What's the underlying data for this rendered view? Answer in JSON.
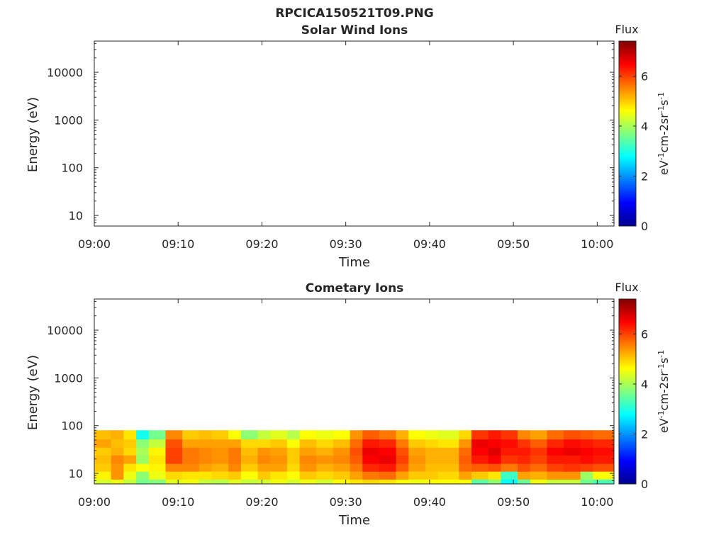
{
  "figure_title": "RPCICA150521T09.PNG",
  "chart_data": [
    {
      "type": "heatmap",
      "title": "Solar Wind Ions",
      "xlabel": "Time",
      "ylabel": "Energy (eV)",
      "y_scale": "log",
      "ylim": [
        6,
        45000
      ],
      "x_range": [
        "09:00",
        "10:02"
      ],
      "x_ticks": [
        "09:00",
        "09:10",
        "09:20",
        "09:30",
        "09:40",
        "09:50",
        "10:00"
      ],
      "y_ticks": [
        "10",
        "100",
        "1000",
        "10000"
      ],
      "colorbar": {
        "title": "Flux",
        "label": "eV-1cm-2sr-1s-1",
        "range": [
          0,
          7.4
        ],
        "ticks": [
          "0",
          "2",
          "4",
          "6"
        ],
        "colormap": "jet"
      },
      "grid": false,
      "data": []
    },
    {
      "type": "heatmap",
      "title": "Cometary Ions",
      "xlabel": "Time",
      "ylabel": "Energy (eV)",
      "y_scale": "log",
      "ylim": [
        6,
        45000
      ],
      "x_range": [
        "09:00",
        "10:02"
      ],
      "x_ticks": [
        "09:00",
        "09:10",
        "09:20",
        "09:30",
        "09:40",
        "09:50",
        "10:00"
      ],
      "y_ticks": [
        "10",
        "100",
        "1000",
        "10000"
      ],
      "colorbar": {
        "title": "Flux",
        "label": "eV-1cm-2sr-1s-1",
        "range": [
          0,
          7.4
        ],
        "ticks": [
          "0",
          "2",
          "4",
          "6"
        ],
        "colormap": "jet"
      },
      "grid": false,
      "energy_edges_eV": [
        6,
        7.5,
        11,
        16,
        24,
        35,
        52,
        80
      ],
      "time_minutes_start": [
        0,
        2,
        3.5,
        5,
        6.5,
        8.5,
        10.5,
        12.5,
        14,
        16,
        17.5,
        19.5,
        21,
        23,
        24.5,
        26.5,
        28.5,
        30.5,
        32,
        34,
        36,
        37.5,
        39.5,
        41,
        43.5,
        45,
        47,
        48.5,
        50.5,
        52,
        54,
        56,
        58,
        59.5
      ],
      "time_minutes_end": 62,
      "flux": [
        [
          4.3,
          4.7,
          5.0,
          5.1,
          5.0,
          5.3,
          5.1
        ],
        [
          4.5,
          5.4,
          5.4,
          5.5,
          5.2,
          5.1,
          5.2
        ],
        [
          4.2,
          4.5,
          4.8,
          5.3,
          4.9,
          5.0,
          4.8
        ],
        [
          3.6,
          3.8,
          4.6,
          3.9,
          4.0,
          3.8,
          2.9
        ],
        [
          3.7,
          4.5,
          4.7,
          4.8,
          4.7,
          4.2,
          3.6
        ],
        [
          4.4,
          4.9,
          5.5,
          6.0,
          6.0,
          5.9,
          5.5
        ],
        [
          4.5,
          4.8,
          5.5,
          5.6,
          5.6,
          5.3,
          5.0
        ],
        [
          4.2,
          4.8,
          5.3,
          5.5,
          5.5,
          5.3,
          5.1
        ],
        [
          4.1,
          4.9,
          5.2,
          5.4,
          5.4,
          5.3,
          5.0
        ],
        [
          4.4,
          5.0,
          5.5,
          5.6,
          5.6,
          5.3,
          4.6
        ],
        [
          4.2,
          4.6,
          5.0,
          5.2,
          5.1,
          4.9,
          3.8
        ],
        [
          4.3,
          5.0,
          5.3,
          5.5,
          5.4,
          4.9,
          4.2
        ],
        [
          4.5,
          4.8,
          5.3,
          5.4,
          5.3,
          5.0,
          4.4
        ],
        [
          4.3,
          4.6,
          4.9,
          5.0,
          5.0,
          4.6,
          4.1
        ],
        [
          4.5,
          5.0,
          5.4,
          5.5,
          5.3,
          5.1,
          4.6
        ],
        [
          4.3,
          4.9,
          5.2,
          5.4,
          5.2,
          4.9,
          4.5
        ],
        [
          4.6,
          5.0,
          5.3,
          5.5,
          5.4,
          5.1,
          4.6
        ],
        [
          4.8,
          5.3,
          5.6,
          5.8,
          5.9,
          5.7,
          5.4
        ],
        [
          4.9,
          5.6,
          6.2,
          6.5,
          6.6,
          6.3,
          5.8
        ],
        [
          4.8,
          5.7,
          6.3,
          6.6,
          6.5,
          6.2,
          5.6
        ],
        [
          4.6,
          5.3,
          5.8,
          6.0,
          5.9,
          5.6,
          5.2
        ],
        [
          4.5,
          5.0,
          5.3,
          5.4,
          5.3,
          5.0,
          4.6
        ],
        [
          4.6,
          5.0,
          5.1,
          5.2,
          5.2,
          4.9,
          4.5
        ],
        [
          4.6,
          4.9,
          5.1,
          5.2,
          5.2,
          4.8,
          4.4
        ],
        [
          4.6,
          5.3,
          5.7,
          5.8,
          5.7,
          5.4,
          4.9
        ],
        [
          3.4,
          5.0,
          5.8,
          6.3,
          6.5,
          6.6,
          6.1
        ],
        [
          3.8,
          4.8,
          5.9,
          6.5,
          6.7,
          6.5,
          6.3
        ],
        [
          2.8,
          3.2,
          5.6,
          6.1,
          6.3,
          6.4,
          6.1
        ],
        [
          3.5,
          5.3,
          5.9,
          6.2,
          6.3,
          6.1,
          5.5
        ],
        [
          4.5,
          5.2,
          5.7,
          6.0,
          6.1,
          5.8,
          5.3
        ],
        [
          4.2,
          5.4,
          6.0,
          6.3,
          6.5,
          6.2,
          5.7
        ],
        [
          4.2,
          5.4,
          6.1,
          6.3,
          6.6,
          6.4,
          5.9
        ],
        [
          3.6,
          3.9,
          6.0,
          6.4,
          6.5,
          6.3,
          5.8
        ],
        [
          3.3,
          4.6,
          5.9,
          6.3,
          6.4,
          6.2,
          5.7
        ]
      ]
    }
  ]
}
